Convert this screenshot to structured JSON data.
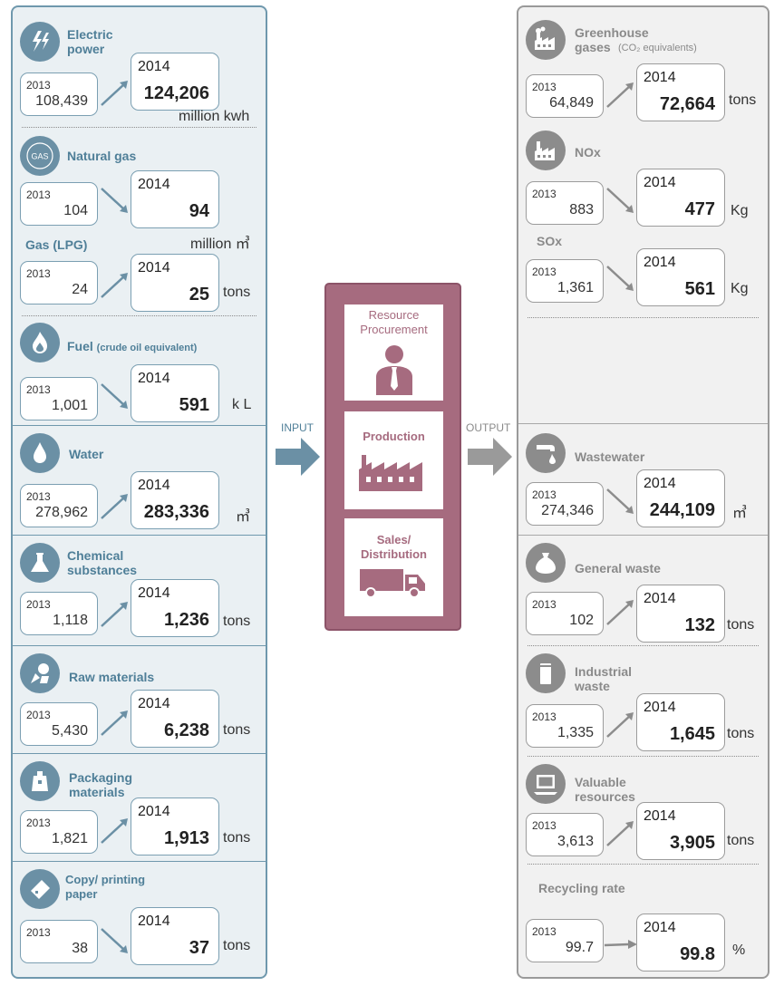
{
  "flow": {
    "input_label": "INPUT",
    "output_label": "OUTPUT"
  },
  "process": {
    "stages": [
      {
        "label": "Resource Procurement",
        "icon": "person-icon"
      },
      {
        "label": "Production",
        "icon": "factory-icon"
      },
      {
        "label": "Sales/ Distribution",
        "icon": "truck-icon"
      }
    ]
  },
  "inputs": {
    "electric_power": {
      "title": "Electric power",
      "y2013_label": "2013",
      "y2013": "108,439",
      "y2014_label": "2014",
      "y2014": "124,206",
      "unit": "million kwh",
      "trend": "up",
      "icon": "lightning-icon"
    },
    "natural_gas": {
      "title": "Natural gas",
      "y2013_label": "2013",
      "y2013": "104",
      "y2014_label": "2014",
      "y2014": "94",
      "unit": "million ㎥",
      "trend": "down",
      "icon": "gas-icon",
      "icon_text": "GAS"
    },
    "gas_lpg": {
      "title": "Gas (LPG)",
      "y2013_label": "2013",
      "y2013": "24",
      "y2014_label": "2014",
      "y2014": "25",
      "unit": "tons",
      "trend": "up"
    },
    "fuel": {
      "title": "Fuel",
      "title_note": "(crude oil equivalent)",
      "y2013_label": "2013",
      "y2013": "1,001",
      "y2014_label": "2014",
      "y2014": "591",
      "unit": "k L",
      "trend": "down",
      "icon": "flame-icon"
    },
    "water": {
      "title": "Water",
      "y2013_label": "2013",
      "y2013": "278,962",
      "y2014_label": "2014",
      "y2014": "283,336",
      "unit": "㎥",
      "trend": "up",
      "icon": "water-drop-icon"
    },
    "chemical": {
      "title": "Chemical substances",
      "y2013_label": "2013",
      "y2013": "1,118",
      "y2014_label": "2014",
      "y2014": "1,236",
      "unit": "tons",
      "trend": "up",
      "icon": "flask-icon"
    },
    "raw_materials": {
      "title": "Raw materials",
      "y2013_label": "2013",
      "y2013": "5,430",
      "y2014_label": "2014",
      "y2014": "6,238",
      "unit": "tons",
      "trend": "up",
      "icon": "raw-materials-icon"
    },
    "packaging": {
      "title": "Packaging materials",
      "y2013_label": "2013",
      "y2013": "1,821",
      "y2014_label": "2014",
      "y2014": "1,913",
      "unit": "tons",
      "trend": "up",
      "icon": "package-icon"
    },
    "paper": {
      "title": "Copy/ printing paper",
      "y2013_label": "2013",
      "y2013": "38",
      "y2014_label": "2014",
      "y2014": "37",
      "unit": "tons",
      "trend": "down",
      "icon": "paper-icon"
    }
  },
  "outputs": {
    "ghg": {
      "title": "Greenhouse gases",
      "title_note": "(CO₂ equivalents)",
      "y2013_label": "2013",
      "y2013": "64,849",
      "y2014_label": "2014",
      "y2014": "72,664",
      "unit": "tons",
      "trend": "up",
      "icon": "factory-smoke-icon"
    },
    "nox": {
      "title": "NOx",
      "y2013_label": "2013",
      "y2013": "883",
      "y2014_label": "2014",
      "y2014": "477",
      "unit": "Kg",
      "trend": "down",
      "icon": "factory-icon"
    },
    "sox": {
      "title": "SOx",
      "y2013_label": "2013",
      "y2013": "1,361",
      "y2014_label": "2014",
      "y2014": "561",
      "unit": "Kg",
      "trend": "down"
    },
    "wastewater": {
      "title": "Wastewater",
      "y2013_label": "2013",
      "y2013": "274,346",
      "y2014_label": "2014",
      "y2014": "244,109",
      "unit": "㎥",
      "trend": "down",
      "icon": "faucet-icon"
    },
    "general_waste": {
      "title": "General waste",
      "y2013_label": "2013",
      "y2013": "102",
      "y2014_label": "2014",
      "y2014": "132",
      "unit": "tons",
      "trend": "up",
      "icon": "trash-bag-icon"
    },
    "industrial_waste": {
      "title": "Industrial waste",
      "y2013_label": "2013",
      "y2013": "1,335",
      "y2014_label": "2014",
      "y2014": "1,645",
      "unit": "tons",
      "trend": "up",
      "icon": "waste-can-icon"
    },
    "valuable": {
      "title": "Valuable resources",
      "y2013_label": "2013",
      "y2013": "3,613",
      "y2014_label": "2014",
      "y2014": "3,905",
      "unit": "tons",
      "trend": "up",
      "icon": "computer-icon"
    },
    "recycling": {
      "title": "Recycling rate",
      "y2013_label": "2013",
      "y2013": "99.7",
      "y2014_label": "2014",
      "y2014": "99.8",
      "unit": "%",
      "trend": "flat"
    }
  },
  "colors": {
    "input_accent": "#6b90a5",
    "output_accent": "#8c8c8c",
    "process_accent": "#a66b7f"
  }
}
